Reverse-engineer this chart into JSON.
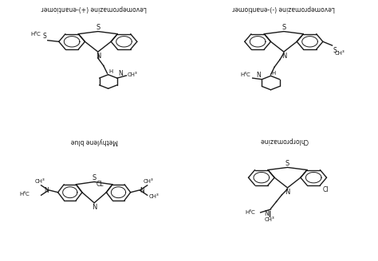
{
  "background_color": "#ffffff",
  "figsize": [
    4.74,
    3.28
  ],
  "dpi": 100,
  "text_color": "#1a1a1a",
  "line_color": "#1a1a1a",
  "line_width": 1.0,
  "structures": [
    {
      "label": "Levomepromazine (+)-enantiomer",
      "col": 0,
      "row": 0
    },
    {
      "label": "Levomepromazine (-)-enantiomer",
      "col": 1,
      "row": 0
    },
    {
      "label": "Methylene blue",
      "col": 0,
      "row": 1
    },
    {
      "label": "Chlorpromazine",
      "col": 1,
      "row": 1
    }
  ],
  "grid_color": "#cccccc"
}
